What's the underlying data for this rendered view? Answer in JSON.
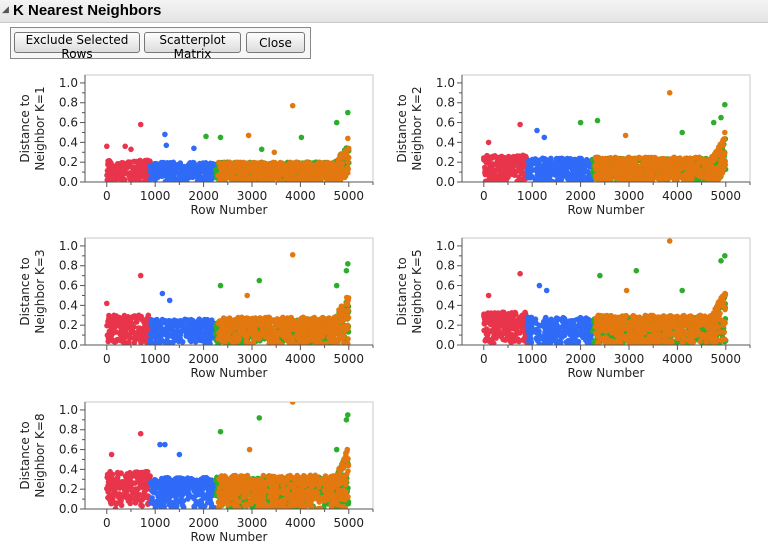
{
  "header": {
    "title": "K Nearest Neighbors",
    "collapse_icon": "triangle-down-icon"
  },
  "buttons": {
    "exclude": "Exclude Selected Rows",
    "scatter": "Scatterplot Matrix",
    "close": "Close"
  },
  "colors": {
    "red": "#E8354B",
    "blue": "#2F6BF7",
    "green": "#2CAE2C",
    "orange": "#E2780F"
  },
  "chart_data": [
    {
      "type": "scatter",
      "ylabel": [
        "Distance to",
        "Neighbor K=1"
      ],
      "xlabel": "Row Number",
      "xlim": [
        -450,
        5500
      ],
      "ylim": [
        0,
        1.08
      ],
      "xticks": [
        0,
        1000,
        2000,
        3000,
        4000,
        5000
      ],
      "yticks": [
        "0.0",
        "0.2",
        "0.4",
        "0.6",
        "0.8",
        "1.0"
      ],
      "groups": [
        {
          "color": "red",
          "rows": [
            0,
            900
          ],
          "typical_max": 0.22
        },
        {
          "color": "blue",
          "rows": [
            900,
            2250
          ],
          "typical_max": 0.2
        },
        {
          "color": "green",
          "rows": [
            2250,
            5000
          ],
          "typical_max": 0.2
        },
        {
          "color": "orange",
          "rows": [
            2300,
            5000
          ],
          "typical_max": 0.2
        }
      ],
      "outliers": [
        [
          "red",
          700,
          0.58
        ],
        [
          "red",
          0,
          0.36
        ],
        [
          "red",
          380,
          0.36
        ],
        [
          "red",
          500,
          0.33
        ],
        [
          "blue",
          1200,
          0.48
        ],
        [
          "blue",
          1230,
          0.37
        ],
        [
          "blue",
          1800,
          0.34
        ],
        [
          "green",
          2050,
          0.46
        ],
        [
          "green",
          2350,
          0.45
        ],
        [
          "green",
          4020,
          0.45
        ],
        [
          "green",
          4750,
          0.6
        ],
        [
          "green",
          4980,
          0.7
        ],
        [
          "green",
          3200,
          0.33
        ],
        [
          "orange",
          3840,
          0.77
        ],
        [
          "orange",
          2930,
          0.47
        ],
        [
          "orange",
          3460,
          0.3
        ],
        [
          "orange",
          4980,
          0.44
        ]
      ]
    },
    {
      "type": "scatter",
      "ylabel": [
        "Distance to",
        "Neighbor K=2"
      ],
      "xlabel": "Row Number",
      "xlim": [
        -450,
        5500
      ],
      "ylim": [
        0,
        1.08
      ],
      "xticks": [
        0,
        1000,
        2000,
        3000,
        4000,
        5000
      ],
      "yticks": [
        "0.0",
        "0.2",
        "0.4",
        "0.6",
        "0.8",
        "1.0"
      ],
      "groups": [
        {
          "color": "red",
          "rows": [
            0,
            900
          ],
          "typical_max": 0.27
        },
        {
          "color": "blue",
          "rows": [
            900,
            2250
          ],
          "typical_max": 0.24
        },
        {
          "color": "green",
          "rows": [
            2250,
            5000
          ],
          "typical_max": 0.24
        },
        {
          "color": "orange",
          "rows": [
            2300,
            5000
          ],
          "typical_max": 0.25
        }
      ],
      "outliers": [
        [
          "red",
          750,
          0.58
        ],
        [
          "red",
          100,
          0.4
        ],
        [
          "blue",
          1100,
          0.52
        ],
        [
          "blue",
          1250,
          0.45
        ],
        [
          "green",
          2000,
          0.6
        ],
        [
          "green",
          2350,
          0.62
        ],
        [
          "green",
          4750,
          0.6
        ],
        [
          "green",
          4900,
          0.65
        ],
        [
          "green",
          4980,
          0.78
        ],
        [
          "green",
          4100,
          0.5
        ],
        [
          "orange",
          3840,
          0.9
        ],
        [
          "orange",
          2930,
          0.47
        ],
        [
          "orange",
          4980,
          0.5
        ]
      ]
    },
    {
      "type": "scatter",
      "ylabel": [
        "Distance to",
        "Neighbor K=3"
      ],
      "xlabel": "Row Number",
      "xlim": [
        -450,
        5500
      ],
      "ylim": [
        0,
        1.08
      ],
      "xticks": [
        0,
        1000,
        2000,
        3000,
        4000,
        5000
      ],
      "yticks": [
        "0.0",
        "0.2",
        "0.4",
        "0.6",
        "0.8",
        "1.0"
      ],
      "groups": [
        {
          "color": "red",
          "rows": [
            0,
            900
          ],
          "typical_max": 0.3
        },
        {
          "color": "blue",
          "rows": [
            900,
            2250
          ],
          "typical_max": 0.26
        },
        {
          "color": "green",
          "rows": [
            2250,
            5000
          ],
          "typical_max": 0.26
        },
        {
          "color": "orange",
          "rows": [
            2300,
            5000
          ],
          "typical_max": 0.28
        }
      ],
      "outliers": [
        [
          "red",
          700,
          0.7
        ],
        [
          "red",
          0,
          0.42
        ],
        [
          "blue",
          1150,
          0.52
        ],
        [
          "blue",
          1300,
          0.45
        ],
        [
          "green",
          2350,
          0.6
        ],
        [
          "green",
          3150,
          0.65
        ],
        [
          "green",
          4950,
          0.75
        ],
        [
          "green",
          4980,
          0.82
        ],
        [
          "green",
          4750,
          0.6
        ],
        [
          "orange",
          3840,
          0.91
        ],
        [
          "orange",
          2900,
          0.5
        ]
      ]
    },
    {
      "type": "scatter",
      "ylabel": [
        "Distance to",
        "Neighbor K=5"
      ],
      "xlabel": "Row Number",
      "xlim": [
        -450,
        5500
      ],
      "ylim": [
        0,
        1.08
      ],
      "xticks": [
        0,
        1000,
        2000,
        3000,
        4000,
        5000
      ],
      "yticks": [
        "0.0",
        "0.2",
        "0.4",
        "0.6",
        "0.8",
        "1.0"
      ],
      "groups": [
        {
          "color": "red",
          "rows": [
            0,
            900
          ],
          "typical_max": 0.33
        },
        {
          "color": "blue",
          "rows": [
            900,
            2250
          ],
          "typical_max": 0.28
        },
        {
          "color": "green",
          "rows": [
            2250,
            5000
          ],
          "typical_max": 0.28
        },
        {
          "color": "orange",
          "rows": [
            2300,
            5000
          ],
          "typical_max": 0.3
        }
      ],
      "outliers": [
        [
          "red",
          750,
          0.72
        ],
        [
          "red",
          100,
          0.5
        ],
        [
          "blue",
          1150,
          0.6
        ],
        [
          "blue",
          1300,
          0.55
        ],
        [
          "green",
          2400,
          0.7
        ],
        [
          "green",
          3150,
          0.75
        ],
        [
          "green",
          4100,
          0.55
        ],
        [
          "green",
          4900,
          0.85
        ],
        [
          "green",
          4980,
          0.9
        ],
        [
          "orange",
          3840,
          1.05
        ],
        [
          "orange",
          2950,
          0.55
        ]
      ]
    },
    {
      "type": "scatter",
      "ylabel": [
        "Distance to",
        "Neighbor K=8"
      ],
      "xlabel": "Row Number",
      "xlim": [
        -450,
        5500
      ],
      "ylim": [
        0,
        1.08
      ],
      "xticks": [
        0,
        1000,
        2000,
        3000,
        4000,
        5000
      ],
      "yticks": [
        "0.0",
        "0.2",
        "0.4",
        "0.6",
        "0.8",
        "1.0"
      ],
      "groups": [
        {
          "color": "red",
          "rows": [
            0,
            900
          ],
          "typical_max": 0.38
        },
        {
          "color": "blue",
          "rows": [
            900,
            2250
          ],
          "typical_max": 0.32
        },
        {
          "color": "green",
          "rows": [
            2250,
            5000
          ],
          "typical_max": 0.32
        },
        {
          "color": "orange",
          "rows": [
            2300,
            5000
          ],
          "typical_max": 0.34
        }
      ],
      "outliers": [
        [
          "red",
          700,
          0.76
        ],
        [
          "red",
          100,
          0.55
        ],
        [
          "blue",
          1100,
          0.65
        ],
        [
          "blue",
          1200,
          0.65
        ],
        [
          "blue",
          1500,
          0.55
        ],
        [
          "green",
          2350,
          0.78
        ],
        [
          "green",
          3150,
          0.92
        ],
        [
          "green",
          4950,
          0.9
        ],
        [
          "green",
          4980,
          0.95
        ],
        [
          "green",
          4750,
          0.6
        ],
        [
          "orange",
          3840,
          1.08
        ],
        [
          "orange",
          2950,
          0.6
        ]
      ]
    }
  ]
}
